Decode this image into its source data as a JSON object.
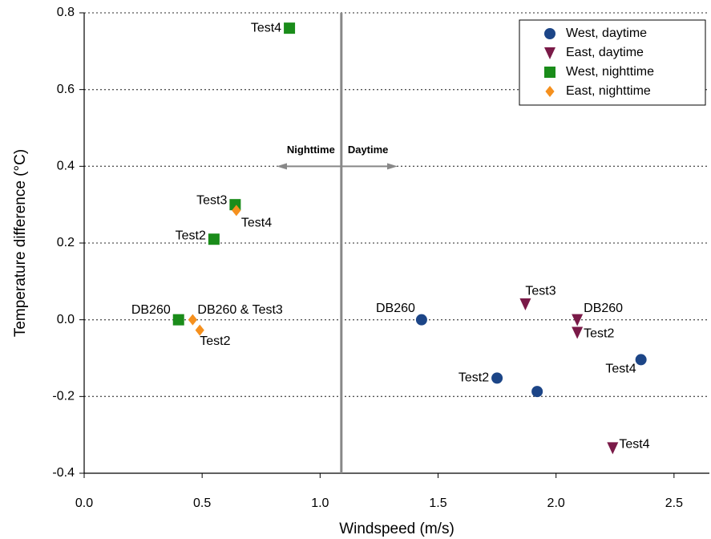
{
  "chart_data": {
    "type": "scatter",
    "x_label": "Windspeed (m/s)",
    "y_label": "Temperature difference (°C)",
    "xlim": [
      0,
      2.65
    ],
    "ylim": [
      -0.4,
      0.8
    ],
    "xticks": [
      {
        "value": 0,
        "label": "0.0"
      },
      0.5,
      {
        "value": 1,
        "label": "1.0"
      },
      1.5,
      {
        "value": 2,
        "label": "2.0"
      },
      2.5
    ],
    "yticks": [
      -0.4,
      -0.2,
      {
        "value": 0,
        "label": "0.0"
      },
      0.2,
      0.4,
      0.6,
      0.8
    ],
    "grid": true,
    "legend": "upper right",
    "divider_x": 1.09,
    "annotations": [
      "Nighttime",
      "Daytime"
    ],
    "series": [
      {
        "name": "West, daytime",
        "marker": "circle",
        "color": "#1c4587",
        "x": [
          1.43,
          1.75,
          1.92,
          2.36
        ],
        "values": [
          0.0,
          -0.152,
          -0.187,
          -0.104
        ],
        "labels": [
          "DB260",
          "Test2",
          null,
          "Test4"
        ]
      },
      {
        "name": "East, daytime",
        "marker": "triangle-down",
        "color": "#7a1a48",
        "x": [
          1.87,
          2.09,
          2.09,
          2.24
        ],
        "values": [
          0.041,
          0.0,
          -0.033,
          -0.334
        ],
        "labels": [
          "Test3",
          "DB260",
          "Test2",
          "Test4"
        ]
      },
      {
        "name": "West, nighttime",
        "marker": "square",
        "color": "#1a8c1a",
        "x": [
          0.87,
          0.64,
          0.55,
          0.4
        ],
        "values": [
          0.76,
          0.3,
          0.21,
          0.0
        ],
        "labels": [
          "Test4",
          "Test3",
          "Test2",
          "DB260"
        ]
      },
      {
        "name": "East, nighttime",
        "marker": "diamond",
        "color": "#f5901e",
        "x": [
          0.46,
          0.49,
          0.645
        ],
        "values": [
          0.0,
          -0.027,
          0.285
        ],
        "labels": [
          "DB260 & Test3",
          "Test2",
          "Test4"
        ]
      }
    ]
  }
}
